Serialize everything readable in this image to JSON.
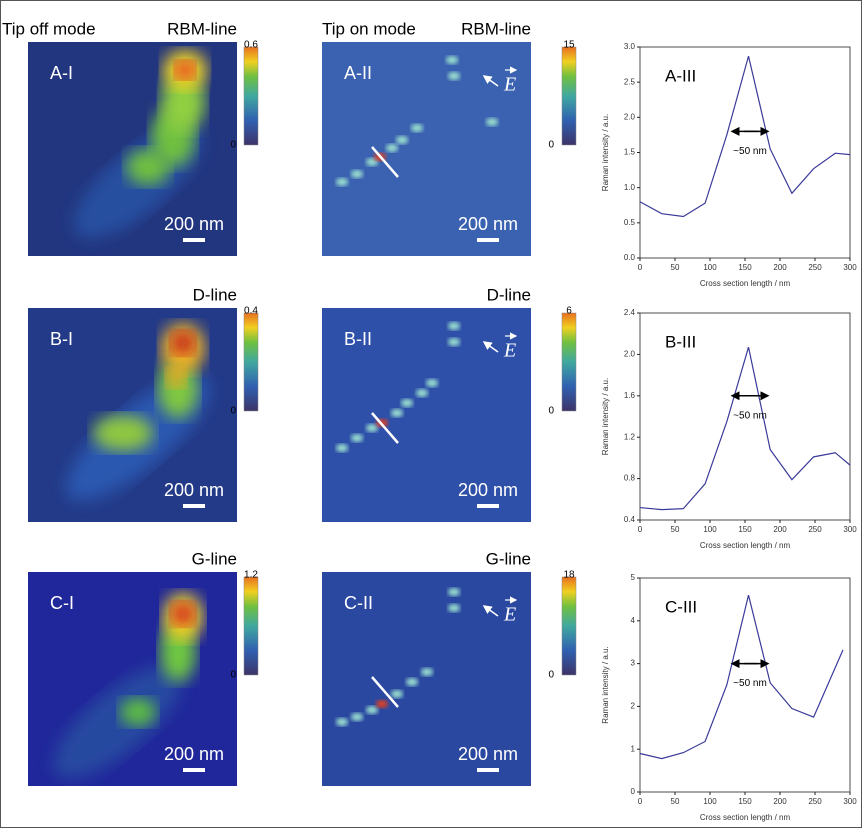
{
  "headers": [
    "Tip off mode",
    "Tip on mode"
  ],
  "rows": [
    {
      "maps": [
        {
          "line": "RBM-line",
          "label": "A-I",
          "colorbar": {
            "max": 0.6,
            "min": 0
          },
          "scale_bar": "200 nm"
        },
        {
          "line": "RBM-line",
          "label": "A-II",
          "colorbar": {
            "max": 15,
            "min": 0
          },
          "scale_bar": "200 nm",
          "field": "E"
        }
      ]
    },
    {
      "maps": [
        {
          "line": "D-line",
          "label": "B-I",
          "colorbar": {
            "max": 0.4,
            "min": 0
          },
          "scale_bar": "200 nm"
        },
        {
          "line": "D-line",
          "label": "B-II",
          "colorbar": {
            "max": 6,
            "min": 0
          },
          "scale_bar": "200 nm",
          "field": "E"
        }
      ]
    },
    {
      "maps": [
        {
          "line": "G-line",
          "label": "C-I",
          "colorbar": {
            "max": 1.2,
            "min": 0
          },
          "scale_bar": "200 nm"
        },
        {
          "line": "G-line",
          "label": "C-II",
          "colorbar": {
            "max": 18,
            "min": 0
          },
          "scale_bar": "200 nm",
          "field": "E"
        }
      ]
    }
  ],
  "chart_data": [
    {
      "type": "line",
      "title": "A-III",
      "annotation": "~50 nm",
      "x_label": "Cross section length / nm",
      "y_label": "Raman intensity / a.u.",
      "x": [
        0,
        31,
        62,
        93,
        124,
        155,
        186,
        217,
        248,
        279,
        300
      ],
      "values": [
        0.8,
        0.63,
        0.59,
        0.78,
        1.75,
        2.87,
        1.55,
        0.92,
        1.27,
        1.49,
        1.47
      ],
      "color": "#3a3a9a",
      "xlim": [
        0,
        300
      ],
      "xticks": [
        0,
        50,
        100,
        150,
        200,
        250,
        300
      ],
      "ylim": [
        0,
        3
      ],
      "yticks": [
        {
          "value": 0,
          "label": "0.0"
        },
        0.5,
        {
          "value": 1,
          "label": "1.0"
        },
        1.5,
        {
          "value": 2,
          "label": "2.0"
        },
        2.5,
        {
          "value": 3,
          "label": "3.0"
        }
      ]
    },
    {
      "type": "line",
      "title": "B-III",
      "annotation": "~50 nm",
      "x_label": "Cross section length / nm",
      "y_label": "Raman intensity / a.u.",
      "x": [
        0,
        31,
        62,
        93,
        124,
        155,
        186,
        217,
        248,
        279,
        300
      ],
      "values": [
        0.52,
        0.5,
        0.51,
        0.75,
        1.35,
        2.07,
        1.08,
        0.79,
        1.01,
        1.05,
        0.93
      ],
      "color": "#3a3a9a",
      "xlim": [
        0,
        300
      ],
      "xticks": [
        0,
        50,
        100,
        150,
        200,
        250,
        300
      ],
      "ylim": [
        0.4,
        2.4
      ],
      "yticks": [
        0.4,
        0.8,
        1.2,
        1.6,
        {
          "value": 2,
          "label": "2.0"
        },
        2.4
      ]
    },
    {
      "type": "line",
      "title": "C-III",
      "annotation": "~50 nm",
      "x_label": "Cross section length / nm",
      "y_label": "Raman intensity / a.u.",
      "x": [
        0,
        31,
        62,
        93,
        124,
        155,
        186,
        217,
        248,
        290
      ],
      "values": [
        0.9,
        0.78,
        0.92,
        1.18,
        2.5,
        4.6,
        2.55,
        1.95,
        1.75,
        3.32
      ],
      "color": "#3a3a9a",
      "xlim": [
        0,
        300
      ],
      "xticks": [
        0,
        50,
        100,
        150,
        200,
        250,
        300
      ],
      "ylim": [
        0,
        5
      ],
      "yticks": [
        0,
        1,
        2,
        3,
        4,
        5
      ]
    }
  ]
}
